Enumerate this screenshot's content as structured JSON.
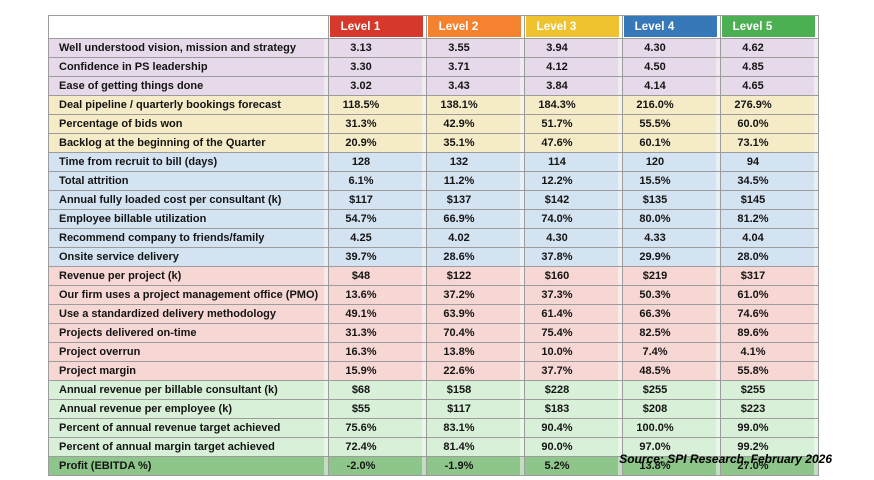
{
  "source_note": "Source: SPI Research, February 2026",
  "chart_data": {
    "type": "table",
    "title": "",
    "columns": [
      "",
      "Level 1",
      "Level 2",
      "Level 3",
      "Level 4",
      "Level 5"
    ],
    "levels": [
      "Level 1",
      "Level 2",
      "Level 3",
      "Level 4",
      "Level 5"
    ],
    "level_colors": [
      "#d6392b",
      "#f5822f",
      "#efc32f",
      "#3778b8",
      "#4caf52"
    ],
    "band_colors": {
      "purple": "#e6d9ea",
      "yellow": "#f5ecc7",
      "blue": "#d3e3f1",
      "pink": "#f7d7d3",
      "green": "#d8f0d8",
      "darkgreen": "#8ec58b"
    },
    "rows": [
      {
        "label": "Well understood vision, mission and strategy",
        "band": "purple",
        "values": [
          "3.13",
          "3.55",
          "3.94",
          "4.30",
          "4.62"
        ]
      },
      {
        "label": "Confidence in PS leadership",
        "band": "purple",
        "values": [
          "3.30",
          "3.71",
          "4.12",
          "4.50",
          "4.85"
        ]
      },
      {
        "label": "Ease of getting things done",
        "band": "purple",
        "values": [
          "3.02",
          "3.43",
          "3.84",
          "4.14",
          "4.65"
        ]
      },
      {
        "label": "Deal pipeline / quarterly bookings forecast",
        "band": "yellow",
        "values": [
          "118.5%",
          "138.1%",
          "184.3%",
          "216.0%",
          "276.9%"
        ]
      },
      {
        "label": "Percentage of bids won",
        "band": "yellow",
        "values": [
          "31.3%",
          "42.9%",
          "51.7%",
          "55.5%",
          "60.0%"
        ]
      },
      {
        "label": "Backlog at the beginning of the Quarter",
        "band": "yellow",
        "values": [
          "20.9%",
          "35.1%",
          "47.6%",
          "60.1%",
          "73.1%"
        ]
      },
      {
        "label": "Time from recruit to bill (days)",
        "band": "blue",
        "values": [
          "128",
          "132",
          "114",
          "120",
          "94"
        ]
      },
      {
        "label": "Total attrition",
        "band": "blue",
        "values": [
          "6.1%",
          "11.2%",
          "12.2%",
          "15.5%",
          "34.5%"
        ]
      },
      {
        "label": "Annual fully loaded cost per consultant (k)",
        "band": "blue",
        "values": [
          "$117",
          "$137",
          "$142",
          "$135",
          "$145"
        ]
      },
      {
        "label": "Employee billable utilization",
        "band": "blue",
        "values": [
          "54.7%",
          "66.9%",
          "74.0%",
          "80.0%",
          "81.2%"
        ]
      },
      {
        "label": "Recommend company to friends/family",
        "band": "blue",
        "values": [
          "4.25",
          "4.02",
          "4.30",
          "4.33",
          "4.04"
        ]
      },
      {
        "label": "Onsite service delivery",
        "band": "blue",
        "values": [
          "39.7%",
          "28.6%",
          "37.8%",
          "29.9%",
          "28.0%"
        ]
      },
      {
        "label": "Revenue per project (k)",
        "band": "pink",
        "values": [
          "$48",
          "$122",
          "$160",
          "$219",
          "$317"
        ]
      },
      {
        "label": "Our firm uses a project management office (PMO)",
        "band": "pink",
        "values": [
          "13.6%",
          "37.2%",
          "37.3%",
          "50.3%",
          "61.0%"
        ]
      },
      {
        "label": "Use a standardized delivery methodology",
        "band": "pink",
        "values": [
          "49.1%",
          "63.9%",
          "61.4%",
          "66.3%",
          "74.6%"
        ]
      },
      {
        "label": "Projects delivered on-time",
        "band": "pink",
        "values": [
          "31.3%",
          "70.4%",
          "75.4%",
          "82.5%",
          "89.6%"
        ]
      },
      {
        "label": "Project overrun",
        "band": "pink",
        "values": [
          "16.3%",
          "13.8%",
          "10.0%",
          "7.4%",
          "4.1%"
        ]
      },
      {
        "label": "Project margin",
        "band": "pink",
        "values": [
          "15.9%",
          "22.6%",
          "37.7%",
          "48.5%",
          "55.8%"
        ]
      },
      {
        "label": "Annual revenue per billable consultant (k)",
        "band": "green",
        "values": [
          "$68",
          "$158",
          "$228",
          "$255",
          "$255"
        ]
      },
      {
        "label": "Annual revenue per employee (k)",
        "band": "green",
        "values": [
          "$55",
          "$117",
          "$183",
          "$208",
          "$223"
        ]
      },
      {
        "label": "Percent of annual revenue target achieved",
        "band": "green",
        "values": [
          "75.6%",
          "83.1%",
          "90.4%",
          "100.0%",
          "99.0%"
        ]
      },
      {
        "label": "Percent of annual margin target achieved",
        "band": "green",
        "values": [
          "72.4%",
          "81.4%",
          "90.0%",
          "97.0%",
          "99.2%"
        ]
      },
      {
        "label": "Profit (EBITDA %)",
        "band": "darkgreen",
        "values": [
          "-2.0%",
          "-1.9%",
          "5.2%",
          "13.8%",
          "27.0%"
        ]
      }
    ]
  }
}
